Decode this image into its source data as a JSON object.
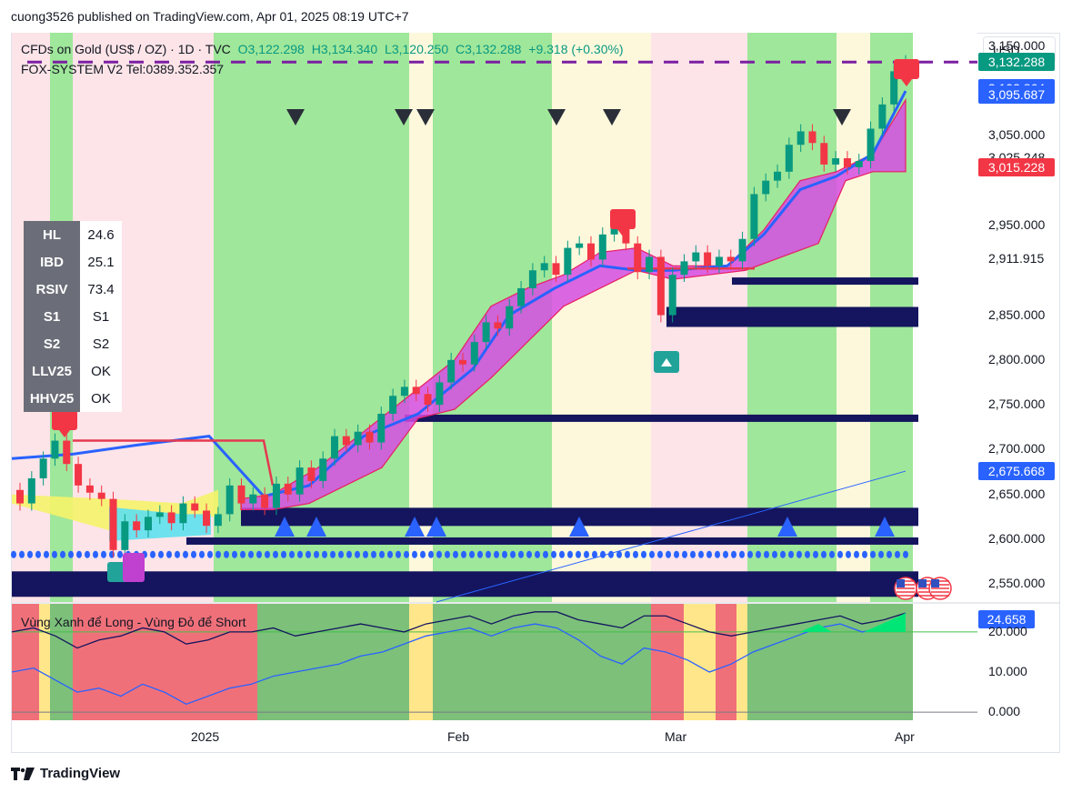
{
  "publisher": "cuong3526 published on TradingView.com, Apr 01, 2025 08:19 UTC+7",
  "legend": {
    "symbol": "CFDs on Gold (US$ / OZ) · 1D · TVC",
    "open": "O3,122.298",
    "high": "H3,134.340",
    "low": "L3,120.250",
    "close": "C3,132.288",
    "change": "+9.318 (+0.30%)",
    "indicator": "FOX-SYSTEM V2 Tel:0389.352.357"
  },
  "currency": "USD",
  "stats": [
    {
      "k": "HL",
      "v": "24.6"
    },
    {
      "k": "IBD",
      "v": "25.1"
    },
    {
      "k": "RSIV",
      "v": "73.4"
    },
    {
      "k": "S1",
      "v": "S1"
    },
    {
      "k": "S2",
      "v": "S2"
    },
    {
      "k": "LLV25",
      "v": "OK"
    },
    {
      "k": "HHV25",
      "v": "OK"
    }
  ],
  "price_ticks": [
    "3,150.000",
    "3,050.000",
    "3,025.248",
    "2,950.000",
    "2,911.915",
    "2,850.000",
    "2,800.000",
    "2,750.000",
    "2,700.000",
    "2,650.000",
    "2,600.000",
    "2,550.000"
  ],
  "price_labels": [
    {
      "text": "3,132.288",
      "color": "#089981"
    },
    {
      "text": "3,102.864",
      "color": "#2962ff"
    },
    {
      "text": "3,095.687",
      "color": "#2962ff"
    },
    {
      "text": "3,015.228",
      "color": "#f23645"
    },
    {
      "text": "2,675.668",
      "color": "#2962ff"
    }
  ],
  "oscillator": {
    "title": "Vùng Xanh để Long - Vùng Đỏ để Short",
    "value_label": "24.658",
    "value_color": "#2962ff",
    "ticks": [
      "20.000",
      "10.000",
      "0.000"
    ]
  },
  "x_labels": [
    "2025",
    "Feb",
    "Mar",
    "Apr"
  ],
  "footer": "TradingView",
  "chart_data": {
    "type": "candlestick",
    "title": "CFDs on Gold (US$ / OZ) · 1D · TVC",
    "ylim": [
      2530,
      3165
    ],
    "y_ticks": [
      2550,
      2600,
      2650,
      2700,
      2750,
      2800,
      2850,
      2900,
      2950,
      3000,
      3050,
      3100,
      3150
    ],
    "x_ticks": [
      "2025",
      "Feb",
      "Mar",
      "Apr"
    ],
    "candles": [
      {
        "o": 2655,
        "c": 2640
      },
      {
        "o": 2640,
        "c": 2668
      },
      {
        "o": 2668,
        "c": 2690
      },
      {
        "o": 2690,
        "c": 2710
      },
      {
        "o": 2710,
        "c": 2684
      },
      {
        "o": 2684,
        "c": 2660
      },
      {
        "o": 2660,
        "c": 2652
      },
      {
        "o": 2652,
        "c": 2645
      },
      {
        "o": 2645,
        "c": 2588
      },
      {
        "o": 2588,
        "c": 2620
      },
      {
        "o": 2620,
        "c": 2610
      },
      {
        "o": 2610,
        "c": 2625
      },
      {
        "o": 2625,
        "c": 2630
      },
      {
        "o": 2630,
        "c": 2618
      },
      {
        "o": 2618,
        "c": 2640
      },
      {
        "o": 2640,
        "c": 2632
      },
      {
        "o": 2632,
        "c": 2615
      },
      {
        "o": 2615,
        "c": 2628
      },
      {
        "o": 2628,
        "c": 2660
      },
      {
        "o": 2660,
        "c": 2640
      },
      {
        "o": 2640,
        "c": 2650
      },
      {
        "o": 2650,
        "c": 2635
      },
      {
        "o": 2635,
        "c": 2662
      },
      {
        "o": 2662,
        "c": 2650
      },
      {
        "o": 2650,
        "c": 2680
      },
      {
        "o": 2680,
        "c": 2665
      },
      {
        "o": 2665,
        "c": 2690
      },
      {
        "o": 2690,
        "c": 2715
      },
      {
        "o": 2715,
        "c": 2705
      },
      {
        "o": 2705,
        "c": 2720
      },
      {
        "o": 2720,
        "c": 2708
      },
      {
        "o": 2708,
        "c": 2740
      },
      {
        "o": 2740,
        "c": 2760
      },
      {
        "o": 2760,
        "c": 2770
      },
      {
        "o": 2770,
        "c": 2762
      },
      {
        "o": 2762,
        "c": 2750
      },
      {
        "o": 2750,
        "c": 2775
      },
      {
        "o": 2775,
        "c": 2800
      },
      {
        "o": 2800,
        "c": 2795
      },
      {
        "o": 2795,
        "c": 2820
      },
      {
        "o": 2820,
        "c": 2842
      },
      {
        "o": 2842,
        "c": 2835
      },
      {
        "o": 2835,
        "c": 2860
      },
      {
        "o": 2860,
        "c": 2880
      },
      {
        "o": 2880,
        "c": 2900
      },
      {
        "o": 2900,
        "c": 2908
      },
      {
        "o": 2908,
        "c": 2895
      },
      {
        "o": 2895,
        "c": 2925
      },
      {
        "o": 2925,
        "c": 2930
      },
      {
        "o": 2930,
        "c": 2912
      },
      {
        "o": 2912,
        "c": 2940
      },
      {
        "o": 2940,
        "c": 2955
      },
      {
        "o": 2955,
        "c": 2930
      },
      {
        "o": 2930,
        "c": 2898
      },
      {
        "o": 2898,
        "c": 2915
      },
      {
        "o": 2915,
        "c": 2850
      },
      {
        "o": 2850,
        "c": 2895
      },
      {
        "o": 2895,
        "c": 2910
      },
      {
        "o": 2910,
        "c": 2920
      },
      {
        "o": 2920,
        "c": 2905
      },
      {
        "o": 2905,
        "c": 2915
      },
      {
        "o": 2915,
        "c": 2910
      },
      {
        "o": 2910,
        "c": 2935
      },
      {
        "o": 2935,
        "c": 2985
      },
      {
        "o": 2985,
        "c": 3000
      },
      {
        "o": 3000,
        "c": 3010
      },
      {
        "o": 3010,
        "c": 3040
      },
      {
        "o": 3040,
        "c": 3055
      },
      {
        "o": 3055,
        "c": 3042
      },
      {
        "o": 3042,
        "c": 3018
      },
      {
        "o": 3018,
        "c": 3025
      },
      {
        "o": 3025,
        "c": 3015
      },
      {
        "o": 3015,
        "c": 3022
      },
      {
        "o": 3022,
        "c": 3058
      },
      {
        "o": 3058,
        "c": 3085
      },
      {
        "o": 3085,
        "c": 3122
      },
      {
        "o": 3122,
        "c": 3132
      }
    ],
    "lines": {
      "last_price": 3132.288,
      "blue_levels": [
        3102.864,
        3095.687,
        2675.668
      ],
      "red_level": 3015.228,
      "gray_level": 3025.248,
      "black_level": 2911.915
    },
    "oscillator": {
      "ylim": [
        -2,
        27
      ],
      "y_ticks": [
        0,
        10,
        20
      ],
      "threshold": 20,
      "dark_line": [
        20,
        21,
        19,
        16,
        18,
        19,
        21,
        20,
        17,
        18,
        20,
        20,
        21,
        19,
        20,
        21,
        22,
        21,
        20,
        22,
        23,
        24,
        22,
        24,
        25,
        25,
        23,
        22,
        21,
        24,
        24,
        22,
        20,
        19,
        20,
        21,
        22,
        23,
        24,
        22,
        23,
        24.7
      ],
      "blue_line": [
        10,
        11,
        8,
        5,
        6,
        4,
        7,
        5,
        2,
        4,
        6,
        7,
        9,
        10,
        11,
        12,
        14,
        15,
        17,
        19,
        20,
        21,
        19,
        21,
        22,
        21,
        18,
        14,
        12,
        16,
        15,
        13,
        10,
        12,
        15,
        17,
        19,
        21,
        22,
        20,
        21,
        24.658
      ]
    }
  }
}
